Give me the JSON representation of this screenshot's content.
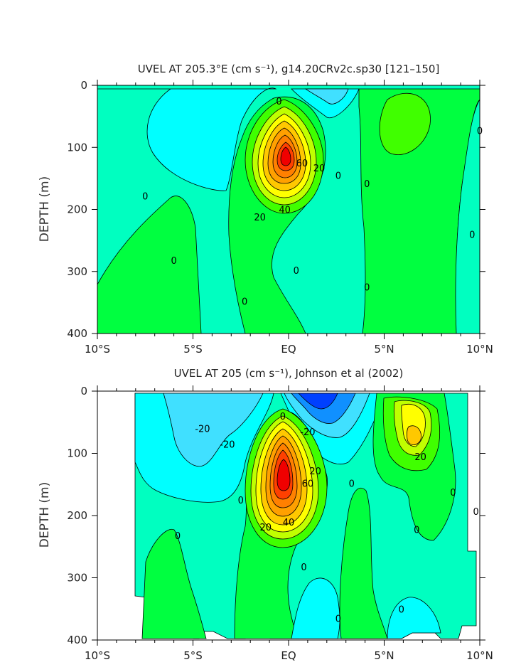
{
  "chart_data": [
    {
      "type": "contour",
      "title": "UVEL AT 205.3°E (cm s⁻¹), g14.20CRv2c.sp30 [121–150]",
      "ylabel": "DEPTH (m)",
      "xlabel": "",
      "x_ticks": [
        "10°S",
        "5°S",
        "EQ",
        "5°N",
        "10°N"
      ],
      "y_ticks": [
        "0",
        "100",
        "200",
        "300",
        "400"
      ],
      "xlim": [
        -10,
        10
      ],
      "ylim": [
        400,
        0
      ],
      "contour_labels": [
        {
          "text": "0",
          "lat": -0.5,
          "depth": 25
        },
        {
          "text": "0",
          "lat": 10.0,
          "depth": 73
        },
        {
          "text": "60",
          "lat": 0.7,
          "depth": 125
        },
        {
          "text": "20",
          "lat": 1.6,
          "depth": 133
        },
        {
          "text": "0",
          "lat": 2.6,
          "depth": 145
        },
        {
          "text": "0",
          "lat": 4.1,
          "depth": 158
        },
        {
          "text": "0",
          "lat": -7.5,
          "depth": 178
        },
        {
          "text": "40",
          "lat": -0.2,
          "depth": 200
        },
        {
          "text": "20",
          "lat": -1.5,
          "depth": 212
        },
        {
          "text": "0",
          "lat": 9.6,
          "depth": 240
        },
        {
          "text": "0",
          "lat": -6.0,
          "depth": 282
        },
        {
          "text": "0",
          "lat": 0.4,
          "depth": 298
        },
        {
          "text": "0",
          "lat": 4.1,
          "depth": 325
        },
        {
          "text": "0",
          "lat": -2.3,
          "depth": 348
        }
      ],
      "max_value": {
        "lat": 0.0,
        "depth": 115
      }
    },
    {
      "type": "contour",
      "title": "UVEL AT 205 (cm s⁻¹), Johnson et al (2002)",
      "ylabel": "DEPTH (m)",
      "xlabel": "",
      "x_ticks": [
        "10°S",
        "5°S",
        "EQ",
        "5°N",
        "10°N"
      ],
      "y_ticks": [
        "0",
        "100",
        "200",
        "300",
        "400"
      ],
      "xlim": [
        -10,
        10
      ],
      "ylim": [
        400,
        0
      ],
      "contour_labels": [
        {
          "text": "0",
          "lat": -0.3,
          "depth": 40
        },
        {
          "text": "-20",
          "lat": -4.5,
          "depth": 60
        },
        {
          "text": "-20",
          "lat": 1.0,
          "depth": 65
        },
        {
          "text": "-20",
          "lat": -3.2,
          "depth": 85
        },
        {
          "text": "20",
          "lat": 6.9,
          "depth": 105
        },
        {
          "text": "20",
          "lat": 1.4,
          "depth": 128
        },
        {
          "text": "60",
          "lat": 1.0,
          "depth": 148
        },
        {
          "text": "0",
          "lat": 3.3,
          "depth": 148
        },
        {
          "text": "0",
          "lat": 8.6,
          "depth": 162
        },
        {
          "text": "0",
          "lat": -2.5,
          "depth": 175
        },
        {
          "text": "0",
          "lat": 9.8,
          "depth": 193
        },
        {
          "text": "40",
          "lat": 0.0,
          "depth": 210
        },
        {
          "text": "20",
          "lat": -1.2,
          "depth": 218
        },
        {
          "text": "0",
          "lat": 6.7,
          "depth": 222
        },
        {
          "text": "0",
          "lat": -5.8,
          "depth": 232
        },
        {
          "text": "0",
          "lat": 0.8,
          "depth": 282
        },
        {
          "text": "0",
          "lat": 5.9,
          "depth": 350
        },
        {
          "text": "0",
          "lat": 2.6,
          "depth": 365
        }
      ],
      "max_value": {
        "lat": 0.0,
        "depth": 130
      }
    }
  ],
  "colors": {
    "cyan": "#00ffff",
    "aqua_green": "#00ffc0",
    "green": "#00ff40",
    "light_green": "#40ff00",
    "yellow_green": "#c0ff00",
    "yellow": "#ffff00",
    "gold": "#ffc800",
    "orange": "#ff8000",
    "red_orange": "#ff4000",
    "red": "#f00000",
    "sky": "#40e0ff",
    "blue_light": "#1090ff",
    "blue": "#0040ff"
  }
}
